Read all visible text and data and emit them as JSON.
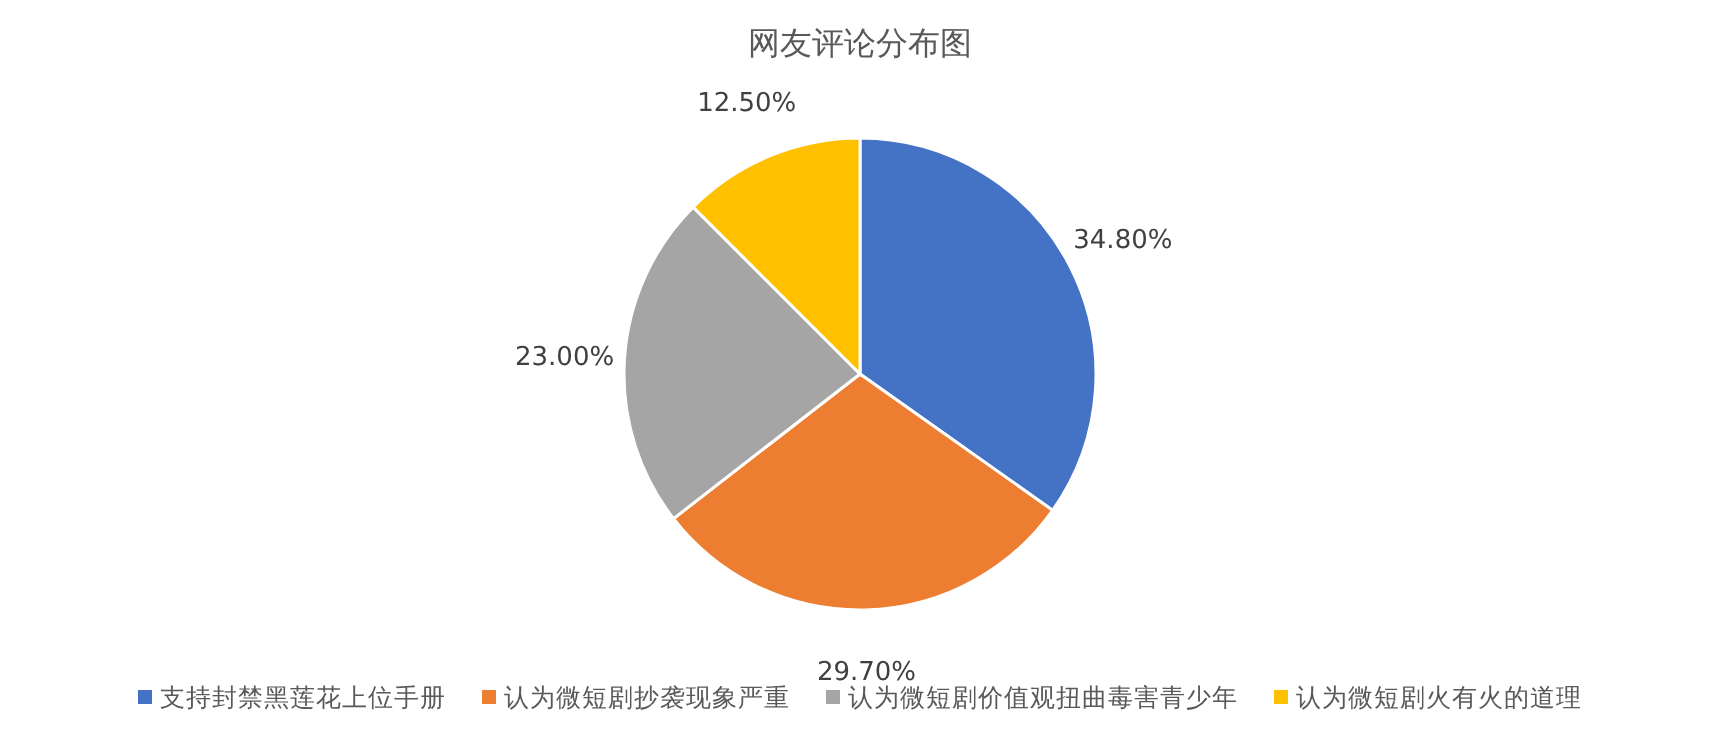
{
  "chart_data": {
    "type": "pie",
    "title": "网友评论分布图",
    "categories": [
      "支持封禁黑莲花上位手册",
      "认为微短剧抄袭现象严重",
      "认为微短剧价值观扭曲毒害青少年",
      "认为微短剧火有火的道理"
    ],
    "values": [
      34.8,
      29.7,
      23.0,
      12.5
    ],
    "colors": [
      "#4472c4",
      "#ed7d31",
      "#a5a5a5",
      "#ffc000"
    ],
    "value_labels": [
      "34.80%",
      "29.70%",
      "23.00%",
      "12.50%"
    ],
    "legend": "bottom"
  }
}
